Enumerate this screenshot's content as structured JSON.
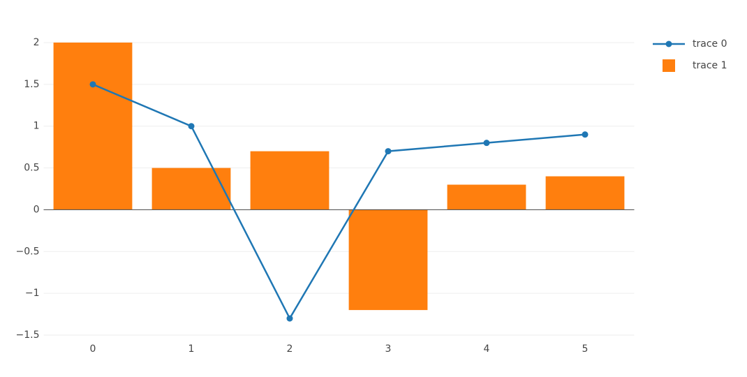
{
  "chart_data": {
    "type": "bar-line",
    "x": [
      0,
      1,
      2,
      3,
      4,
      5
    ],
    "series": [
      {
        "name": "trace 0",
        "type": "line",
        "color": "#1f77b4",
        "values": [
          1.5,
          1,
          -1.3,
          0.7,
          0.8,
          0.9
        ]
      },
      {
        "name": "trace 1",
        "type": "bar",
        "color": "#ff7f0e",
        "values": [
          2,
          0.5,
          0.7,
          -1.2,
          0.3,
          0.4
        ]
      }
    ],
    "xlim": [
      -0.5,
      5.5
    ],
    "xticks": [
      0,
      1,
      2,
      3,
      4,
      5
    ],
    "ylim": [
      -1.55,
      2.1
    ],
    "yticks": [
      {
        "value": -1.5,
        "label": "−1.5"
      },
      {
        "value": -1,
        "label": "−1"
      },
      {
        "value": -0.5,
        "label": "−0.5"
      },
      0,
      0.5,
      1,
      1.5,
      2
    ],
    "grid": true,
    "legend": "top-right"
  }
}
